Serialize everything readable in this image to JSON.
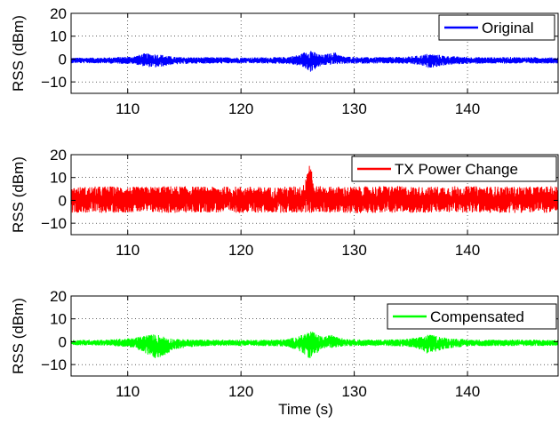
{
  "chart_data": [
    {
      "type": "line",
      "ylabel": "RSS (dBm)",
      "xlabel": "",
      "xlim": [
        105,
        148
      ],
      "ylim": [
        -15,
        20
      ],
      "xticks": [
        "110",
        "120",
        "130",
        "140"
      ],
      "yticks": [
        "−10",
        "0",
        "10",
        "20"
      ],
      "grid": "dotted",
      "legend_position": "top-right",
      "series": [
        {
          "name": "Original",
          "color": "#0000ff",
          "x": [
            105,
            108,
            110.5,
            111.5,
            112.5,
            113.2,
            114,
            116,
            118,
            120,
            122,
            124,
            125.2,
            125.8,
            126.2,
            126.6,
            127.2,
            128.3,
            129,
            131,
            133,
            134.5,
            135.8,
            136.5,
            137.3,
            138.2,
            140,
            142,
            144,
            146,
            148
          ],
          "max": [
            0.6,
            0.7,
            1.2,
            2.5,
            2.2,
            1.8,
            1.0,
            0.8,
            0.8,
            0.7,
            0.8,
            0.9,
            2.0,
            3.6,
            4.4,
            2.6,
            1.8,
            3.0,
            1.2,
            0.8,
            0.9,
            1.0,
            1.6,
            2.4,
            2.0,
            1.4,
            0.9,
            0.8,
            0.9,
            0.8,
            0.7
          ],
          "min": [
            -1.8,
            -1.9,
            -2.2,
            -3.3,
            -3.8,
            -3.2,
            -2.4,
            -2.0,
            -2.0,
            -1.9,
            -2.0,
            -2.1,
            -3.0,
            -4.6,
            -5.8,
            -4.3,
            -2.8,
            -2.4,
            -2.1,
            -2.0,
            -2.0,
            -2.1,
            -2.7,
            -3.9,
            -3.4,
            -2.6,
            -2.1,
            -2.0,
            -2.0,
            -2.0,
            -1.9
          ]
        }
      ]
    },
    {
      "type": "line",
      "ylabel": "RSS (dBm)",
      "xlabel": "",
      "xlim": [
        105,
        148
      ],
      "ylim": [
        -15,
        20
      ],
      "xticks": [
        "110",
        "120",
        "130",
        "140"
      ],
      "yticks": [
        "−10",
        "0",
        "10",
        "20"
      ],
      "grid": "dotted",
      "legend_position": "top-right",
      "series": [
        {
          "name": "TX Power Change",
          "color": "#ff0000",
          "x": [
            105,
            108,
            111,
            114,
            117,
            120,
            123,
            125.5,
            126.0,
            126.2,
            126.4,
            127,
            130,
            133,
            136,
            139,
            142,
            145,
            148
          ],
          "max": [
            5.8,
            6.2,
            5.9,
            6.3,
            6.0,
            6.1,
            5.8,
            6.4,
            17.5,
            17.0,
            6.5,
            6.2,
            6.0,
            6.4,
            5.9,
            6.3,
            6.1,
            6.0,
            6.2
          ],
          "min": [
            -5.4,
            -5.5,
            -5.2,
            -5.6,
            -5.3,
            -5.5,
            -5.4,
            -5.5,
            -5.6,
            -5.6,
            -5.5,
            -5.3,
            -5.6,
            -5.4,
            -5.5,
            -5.3,
            -5.6,
            -5.4,
            -5.5
          ]
        }
      ]
    },
    {
      "type": "line",
      "ylabel": "RSS (dBm)",
      "xlabel": "Time (s)",
      "xlim": [
        105,
        148
      ],
      "ylim": [
        -15,
        20
      ],
      "xticks": [
        "110",
        "120",
        "130",
        "140"
      ],
      "yticks": [
        "−10",
        "0",
        "10",
        "20"
      ],
      "grid": "dotted",
      "legend_position": "top-right",
      "series": [
        {
          "name": "Compensated",
          "color": "#00ff00",
          "x": [
            105,
            108,
            110.5,
            111.5,
            112.5,
            113.2,
            114,
            116,
            118,
            120,
            122,
            124,
            125.2,
            125.8,
            126.2,
            126.6,
            127.2,
            128.3,
            129,
            131,
            133,
            134.5,
            135.8,
            136.5,
            137.3,
            138.2,
            140,
            142,
            144,
            146,
            148
          ],
          "max": [
            0.8,
            0.9,
            1.6,
            2.9,
            3.4,
            2.4,
            1.3,
            0.9,
            0.9,
            0.8,
            0.9,
            1.1,
            2.6,
            4.2,
            5.0,
            3.4,
            2.2,
            3.3,
            1.4,
            0.9,
            1.0,
            1.2,
            2.0,
            3.2,
            2.6,
            1.7,
            1.0,
            0.9,
            1.0,
            0.9,
            0.8
          ],
          "min": [
            -1.6,
            -1.7,
            -2.6,
            -5.2,
            -7.6,
            -6.3,
            -3.4,
            -2.1,
            -1.9,
            -1.8,
            -1.9,
            -2.2,
            -4.2,
            -6.6,
            -7.6,
            -5.5,
            -3.1,
            -2.6,
            -2.0,
            -1.9,
            -1.9,
            -2.1,
            -3.4,
            -5.3,
            -4.4,
            -3.0,
            -2.0,
            -1.9,
            -1.9,
            -1.9,
            -1.8
          ]
        }
      ]
    }
  ]
}
